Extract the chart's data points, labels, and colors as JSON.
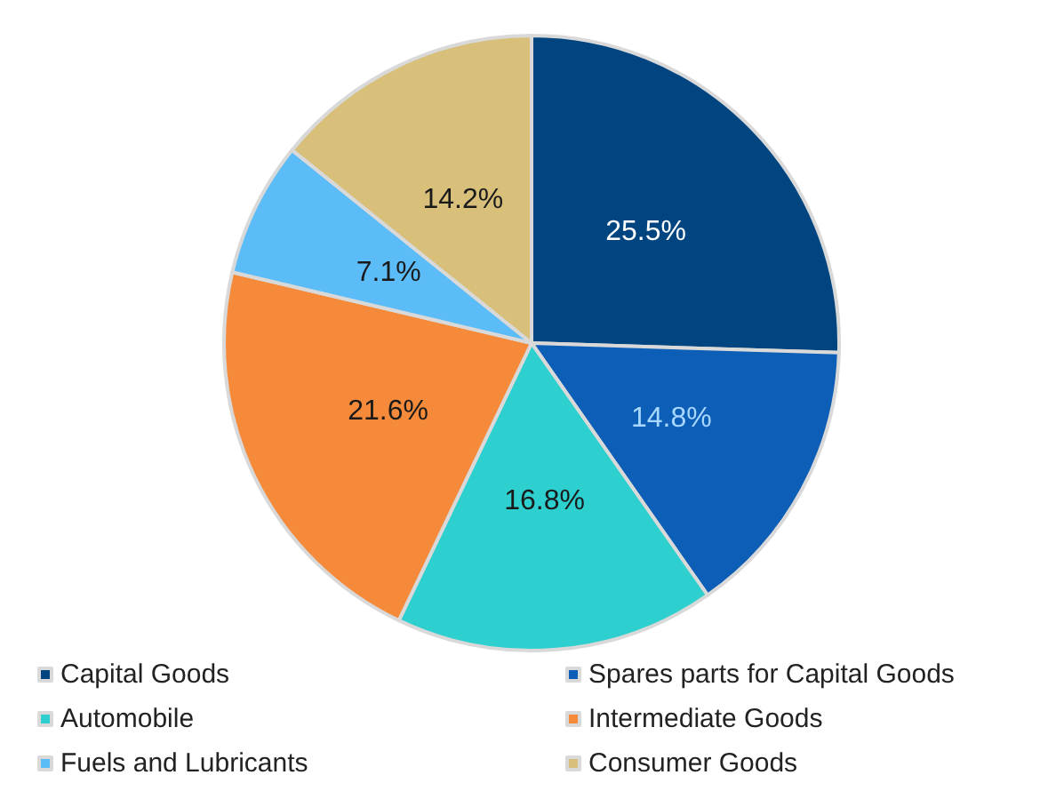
{
  "chart_data": {
    "type": "pie",
    "categories": [
      "Capital Goods",
      "Spares parts for Capital Goods",
      "Automobile",
      "Intermediate Goods",
      "Fuels and Lubricants",
      "Consumer Goods"
    ],
    "values": [
      25.5,
      14.8,
      16.8,
      21.6,
      7.1,
      14.2
    ],
    "value_labels": [
      "25.5%",
      "14.8%",
      "16.8%",
      "21.6%",
      "7.1%",
      "14.2%"
    ],
    "colors": [
      "#004480",
      "#0d5eb6",
      "#2ecfcf",
      "#f58b3a",
      "#5bbcf8",
      "#d8c07a"
    ],
    "legend": "bottom"
  }
}
